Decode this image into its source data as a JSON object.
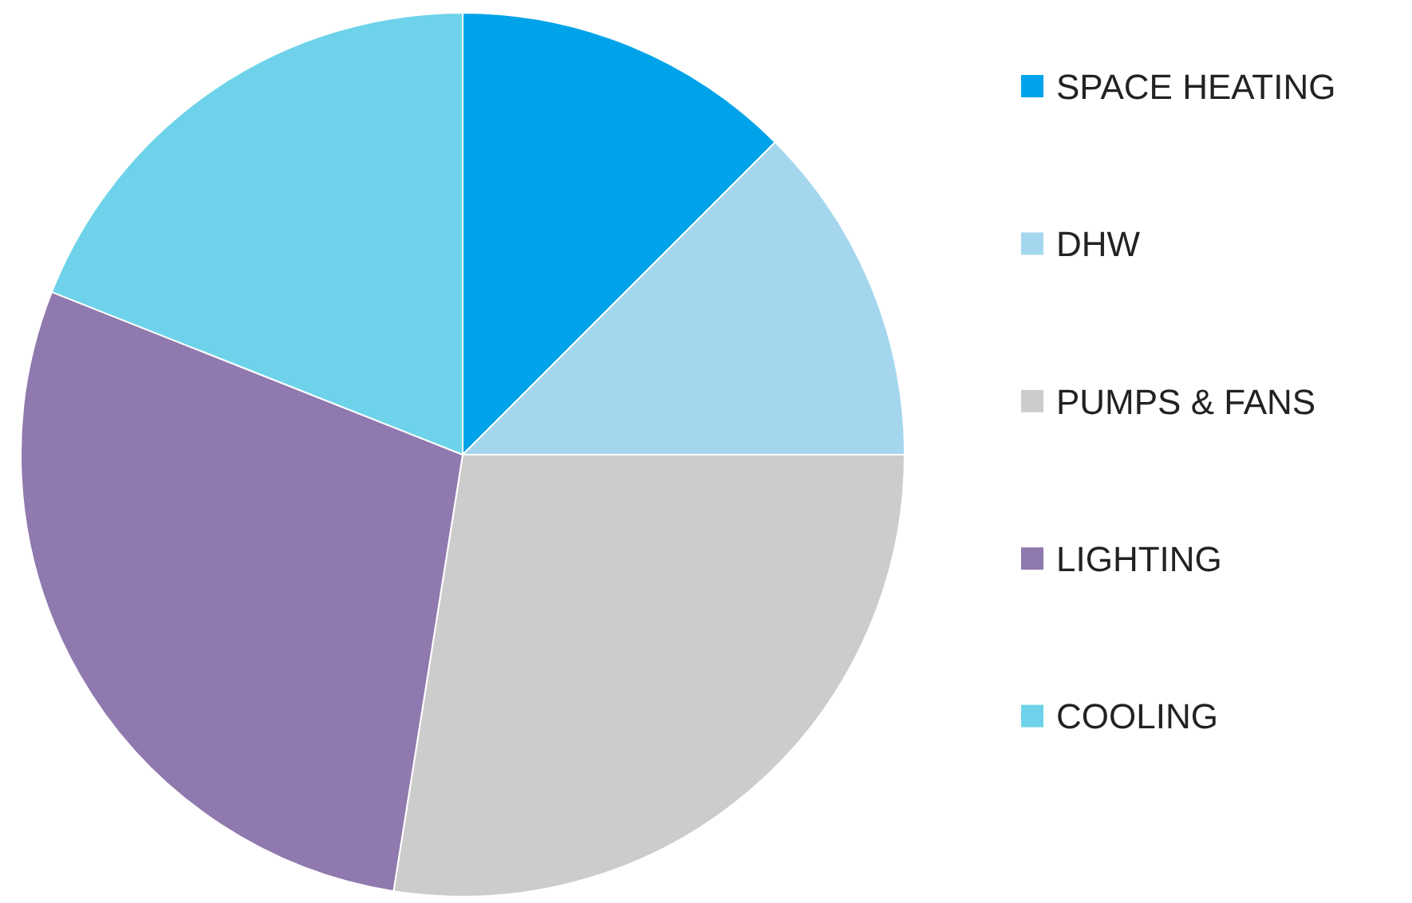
{
  "chart_data": {
    "type": "pie",
    "categories": [
      "SPACE HEATING",
      "DHW",
      "PUMPS & FANS",
      "LIGHTING",
      "COOLING"
    ],
    "values": [
      12.5,
      12.5,
      27.5,
      28.5,
      19
    ],
    "colors": [
      "#00a3e9",
      "#a4d7ee",
      "#cccccc",
      "#9079ae",
      "#6ed3ea"
    ],
    "legend": "right"
  }
}
